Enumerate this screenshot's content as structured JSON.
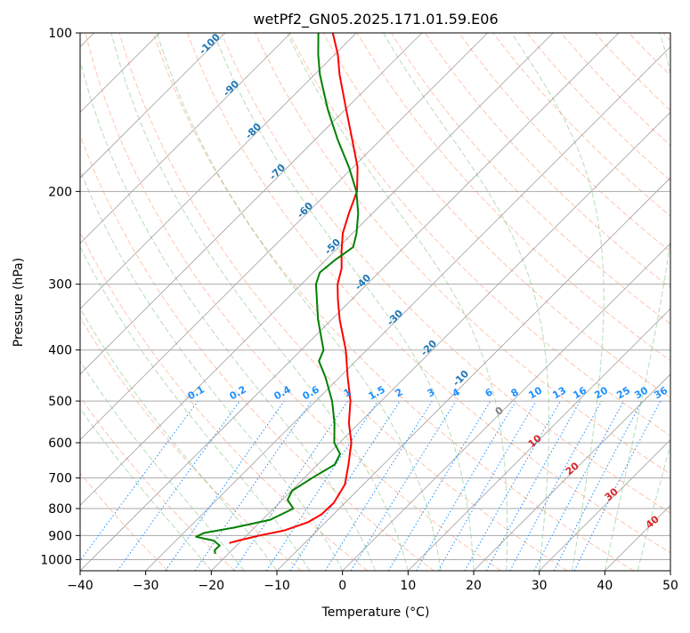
{
  "chart_data": {
    "type": "line",
    "title": "wetPf2_GN05.2025.171.01.59.E06",
    "xlabel": "Temperature (°C)",
    "ylabel": "Pressure (hPa)",
    "xlim": [
      -40,
      50
    ],
    "ylim": [
      1050,
      100
    ],
    "y_scale": "log",
    "grid": true,
    "x_ticks": [
      -40,
      -30,
      -20,
      -10,
      0,
      10,
      20,
      30,
      40,
      50
    ],
    "y_ticks": [
      100,
      200,
      300,
      400,
      500,
      600,
      700,
      800,
      900,
      1000
    ],
    "series": [
      {
        "role": "temperature",
        "color": "#ff0000",
        "points": [
          {
            "p": 930,
            "t": -21.5
          },
          {
            "p": 920,
            "t": -20.5
          },
          {
            "p": 900,
            "t": -18.0
          },
          {
            "p": 880,
            "t": -15.0
          },
          {
            "p": 850,
            "t": -12.7
          },
          {
            "p": 820,
            "t": -11.8
          },
          {
            "p": 780,
            "t": -11.7
          },
          {
            "p": 720,
            "t": -12.8
          },
          {
            "p": 660,
            "t": -15.3
          },
          {
            "p": 600,
            "t": -18.2
          },
          {
            "p": 550,
            "t": -21.6
          },
          {
            "p": 500,
            "t": -24.7
          },
          {
            "p": 450,
            "t": -28.8
          },
          {
            "p": 400,
            "t": -33.2
          },
          {
            "p": 350,
            "t": -38.8
          },
          {
            "p": 320,
            "t": -42.2
          },
          {
            "p": 300,
            "t": -44.5
          },
          {
            "p": 280,
            "t": -46.3
          },
          {
            "p": 260,
            "t": -48.9
          },
          {
            "p": 240,
            "t": -51.5
          },
          {
            "p": 220,
            "t": -53.6
          },
          {
            "p": 200,
            "t": -55.7
          },
          {
            "p": 180,
            "t": -59.3
          },
          {
            "p": 160,
            "t": -64.2
          },
          {
            "p": 140,
            "t": -69.8
          },
          {
            "p": 120,
            "t": -76.2
          },
          {
            "p": 110,
            "t": -79.5
          },
          {
            "p": 100,
            "t": -83.6
          }
        ]
      },
      {
        "role": "dewpoint",
        "color": "#008000",
        "points": [
          {
            "p": 975,
            "t": -22.0
          },
          {
            "p": 960,
            "t": -22.6
          },
          {
            "p": 940,
            "t": -22.6
          },
          {
            "p": 920,
            "t": -24.3
          },
          {
            "p": 905,
            "t": -27.5
          },
          {
            "p": 890,
            "t": -26.9
          },
          {
            "p": 870,
            "t": -23.2
          },
          {
            "p": 840,
            "t": -18.8
          },
          {
            "p": 800,
            "t": -17.0
          },
          {
            "p": 770,
            "t": -19.2
          },
          {
            "p": 740,
            "t": -19.9
          },
          {
            "p": 700,
            "t": -18.8
          },
          {
            "p": 660,
            "t": -17.4
          },
          {
            "p": 630,
            "t": -18.2
          },
          {
            "p": 600,
            "t": -20.8
          },
          {
            "p": 550,
            "t": -23.8
          },
          {
            "p": 500,
            "t": -27.5
          },
          {
            "p": 450,
            "t": -32.2
          },
          {
            "p": 420,
            "t": -35.6
          },
          {
            "p": 400,
            "t": -36.6
          },
          {
            "p": 350,
            "t": -42.1
          },
          {
            "p": 320,
            "t": -45.4
          },
          {
            "p": 300,
            "t": -47.8
          },
          {
            "p": 285,
            "t": -49.0
          },
          {
            "p": 270,
            "t": -48.6
          },
          {
            "p": 255,
            "t": -47.8
          },
          {
            "p": 240,
            "t": -49.4
          },
          {
            "p": 220,
            "t": -52.2
          },
          {
            "p": 200,
            "t": -55.8
          },
          {
            "p": 180,
            "t": -60.6
          },
          {
            "p": 160,
            "t": -66.4
          },
          {
            "p": 140,
            "t": -72.6
          },
          {
            "p": 120,
            "t": -79.2
          },
          {
            "p": 110,
            "t": -82.5
          },
          {
            "p": 100,
            "t": -85.8
          }
        ]
      }
    ],
    "isotherm_skew_labels": [
      "-100",
      "-90",
      "-80",
      "-70",
      "-60",
      "-50",
      "-40",
      "-30",
      "-20",
      "-10"
    ],
    "mixing_ratio_labels": [
      "0.1",
      "0.2",
      "0.4",
      "0.6",
      "1",
      "1.5",
      "2",
      "3",
      "4",
      "6",
      "8",
      "10",
      "13",
      "16",
      "20",
      "25",
      "30",
      "36"
    ],
    "mixing_ratio_values": [
      0.1,
      0.2,
      0.4,
      0.6,
      1,
      1.5,
      2,
      3,
      4,
      6,
      8,
      10,
      13,
      16,
      20,
      25,
      30,
      36
    ],
    "red_labels": [
      "0",
      "10",
      "20",
      "30",
      "40"
    ],
    "colors": {
      "temperature": "#ff0000",
      "dewpoint": "#008000",
      "isotherm_labels": "#1f77b4",
      "mixing_ratio": "#1e90ff",
      "dry_adiabat": "#ff7f50",
      "moist_adiabat": "#2ca02c",
      "red_labels": "#d62728",
      "zero_label": "#808080"
    }
  }
}
